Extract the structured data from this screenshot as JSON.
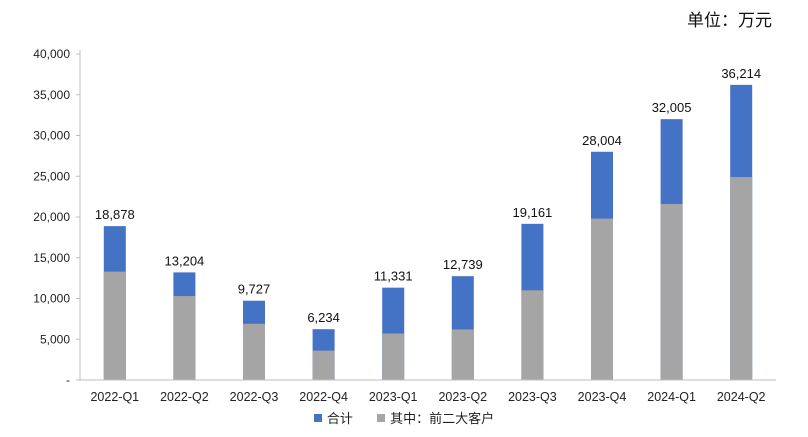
{
  "unit_label": "单位：万元",
  "chart_data": {
    "type": "bar",
    "stacked": false,
    "overlay": true,
    "categories": [
      "2022-Q1",
      "2022-Q2",
      "2022-Q3",
      "2022-Q4",
      "2023-Q1",
      "2023-Q2",
      "2023-Q3",
      "2023-Q4",
      "2024-Q1",
      "2024-Q2"
    ],
    "series": [
      {
        "name": "合计",
        "color": "#4472C4",
        "values": [
          18878,
          13204,
          9727,
          6234,
          11331,
          12739,
          19161,
          28004,
          32005,
          36214
        ]
      },
      {
        "name": "其中：前二大客户",
        "color": "#A5A5A5",
        "values": [
          13300,
          10300,
          6900,
          3600,
          5700,
          6200,
          11000,
          19800,
          21600,
          24900
        ]
      }
    ],
    "data_labels": [
      "18,878",
      "13,204",
      "9,727",
      "6,234",
      "11,331",
      "12,739",
      "19,161",
      "28,004",
      "32,005",
      "36,214"
    ],
    "y_ticks": [
      "-",
      "5,000",
      "10,000",
      "15,000",
      "20,000",
      "25,000",
      "30,000",
      "35,000",
      "40,000"
    ],
    "ylim": [
      0,
      40000
    ],
    "grid": false,
    "legend_position": "bottom"
  }
}
